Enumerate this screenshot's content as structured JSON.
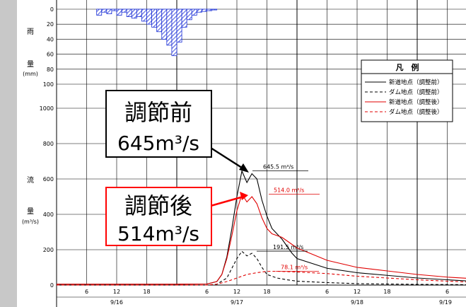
{
  "chart_data": {
    "type": "line",
    "y_labels_left": {
      "rain_1": "雨",
      "rain_2": "量",
      "rain_unit": "(mm)",
      "flow_1": "流",
      "flow_2": "量",
      "flow_unit": "(m³/s)"
    },
    "rain_axis": {
      "ticks": [
        "0",
        "20",
        "40",
        "60",
        "80",
        "100"
      ],
      "ylim": [
        0,
        100
      ],
      "inverted": true
    },
    "flow_axis": {
      "ticks": [
        "0",
        "200",
        "400",
        "600",
        "800",
        "1000"
      ],
      "ylim": [
        0,
        1000
      ]
    },
    "x_axis": {
      "hour_ticks": [
        "6",
        "12",
        "18",
        "6",
        "12",
        "18",
        "6",
        "12",
        "18",
        "6"
      ],
      "day_labels": [
        "9/16",
        "9/17",
        "9/18",
        "9/19"
      ]
    },
    "rainfall": {
      "hours_from_9_17_0h": [
        0,
        1,
        2,
        3,
        4,
        5,
        6,
        7,
        8,
        9,
        10,
        11,
        12,
        13,
        14,
        15,
        16,
        17,
        18,
        19,
        20,
        21,
        22,
        23
      ],
      "values_mm": [
        8,
        4,
        6,
        2,
        8,
        4,
        10,
        12,
        10,
        16,
        20,
        24,
        30,
        40,
        48,
        62,
        44,
        24,
        14,
        8,
        4,
        3,
        2,
        1
      ]
    },
    "series": [
      {
        "name": "新道地点（調整前）",
        "color": "#000000",
        "dash": "solid",
        "points": [
          [
            -24,
            5
          ],
          [
            0,
            5
          ],
          [
            6,
            6
          ],
          [
            8,
            20
          ],
          [
            9,
            60
          ],
          [
            10,
            160
          ],
          [
            11,
            320
          ],
          [
            12,
            500
          ],
          [
            13,
            645
          ],
          [
            14,
            580
          ],
          [
            15,
            630
          ],
          [
            16,
            600
          ],
          [
            17,
            480
          ],
          [
            18,
            390
          ],
          [
            19,
            320
          ],
          [
            20,
            290
          ],
          [
            21,
            260
          ],
          [
            22,
            220
          ],
          [
            23,
            180
          ],
          [
            24,
            150
          ],
          [
            30,
            95
          ],
          [
            36,
            70
          ],
          [
            42,
            55
          ],
          [
            48,
            40
          ],
          [
            54,
            30
          ],
          [
            60,
            20
          ]
        ]
      },
      {
        "name": "ダム地点（調整前）",
        "color": "#000000",
        "dash": "dashed",
        "points": [
          [
            -24,
            0
          ],
          [
            6,
            0
          ],
          [
            8,
            5
          ],
          [
            10,
            40
          ],
          [
            12,
            150
          ],
          [
            13,
            191
          ],
          [
            14,
            165
          ],
          [
            15,
            180
          ],
          [
            16,
            150
          ],
          [
            17,
            100
          ],
          [
            18,
            60
          ],
          [
            20,
            40
          ],
          [
            22,
            30
          ],
          [
            24,
            22
          ],
          [
            30,
            14
          ],
          [
            36,
            8
          ],
          [
            48,
            4
          ],
          [
            60,
            2
          ]
        ]
      },
      {
        "name": "新道地点（調整後）",
        "color": "#e00000",
        "dash": "solid",
        "points": [
          [
            -24,
            5
          ],
          [
            0,
            5
          ],
          [
            6,
            6
          ],
          [
            8,
            20
          ],
          [
            9,
            60
          ],
          [
            10,
            150
          ],
          [
            11,
            280
          ],
          [
            12,
            420
          ],
          [
            13,
            514
          ],
          [
            14,
            470
          ],
          [
            15,
            500
          ],
          [
            16,
            460
          ],
          [
            17,
            380
          ],
          [
            18,
            320
          ],
          [
            19,
            290
          ],
          [
            20,
            280
          ],
          [
            21,
            270
          ],
          [
            22,
            250
          ],
          [
            23,
            230
          ],
          [
            24,
            210
          ],
          [
            30,
            140
          ],
          [
            36,
            100
          ],
          [
            42,
            80
          ],
          [
            48,
            60
          ],
          [
            54,
            45
          ],
          [
            60,
            35
          ]
        ]
      },
      {
        "name": "ダム地点（調整後）",
        "color": "#e00000",
        "dash": "dashed",
        "points": [
          [
            -24,
            0
          ],
          [
            6,
            0
          ],
          [
            8,
            5
          ],
          [
            10,
            20
          ],
          [
            12,
            40
          ],
          [
            14,
            60
          ],
          [
            16,
            70
          ],
          [
            18,
            78
          ],
          [
            20,
            78
          ],
          [
            22,
            76
          ],
          [
            24,
            74
          ],
          [
            30,
            65
          ],
          [
            36,
            50
          ],
          [
            42,
            40
          ],
          [
            48,
            30
          ],
          [
            54,
            22
          ],
          [
            60,
            15
          ]
        ]
      }
    ],
    "peak_labels": [
      {
        "text": "645.5 m³/s",
        "color": "#000000",
        "value": 645.5
      },
      {
        "text": "514.0 m³/s",
        "color": "#e00000",
        "value": 514.0
      },
      {
        "text": "191.5 m³/s",
        "color": "#000000",
        "value": 191.5
      },
      {
        "text": "78.1 m³/s",
        "color": "#e00000",
        "value": 78.1
      }
    ],
    "legend": {
      "title": "凡　例",
      "placement": "top-right",
      "entries": [
        "新道地点（調整前）",
        "ダム地点（調整前）",
        "新道地点（調整後）",
        "ダム地点（調整後）"
      ]
    }
  },
  "callouts": {
    "before_line1": "調節前",
    "before_value": "645",
    "before_unit": "m³/s",
    "after_line1": "調節後",
    "after_value": "514",
    "after_unit": "m³/s"
  }
}
